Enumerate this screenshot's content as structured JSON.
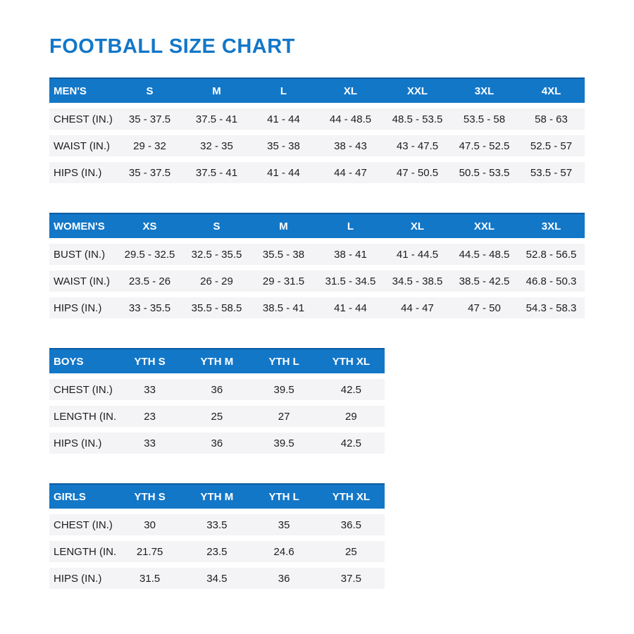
{
  "page": {
    "title": "FOOTBALL SIZE CHART"
  },
  "colors": {
    "accent_blue": "#1377c8",
    "header_border_blue": "#0d5ca1",
    "header_text": "#ffffff",
    "row_background": "#f4f4f6",
    "body_text": "#1d1d1f",
    "page_background": "#ffffff"
  },
  "tables": [
    {
      "id": "mens",
      "header_label": "MEN'S",
      "columns": [
        "S",
        "M",
        "L",
        "XL",
        "XXL",
        "3XL",
        "4XL"
      ],
      "rows": [
        {
          "label": "CHEST (IN.)",
          "values": [
            "35 - 37.5",
            "37.5 - 41",
            "41 - 44",
            "44 - 48.5",
            "48.5 - 53.5",
            "53.5 - 58",
            "58 - 63"
          ]
        },
        {
          "label": "WAIST (IN.)",
          "values": [
            "29 - 32",
            "32 - 35",
            "35 - 38",
            "38 - 43",
            "43 - 47.5",
            "47.5 - 52.5",
            "52.5 - 57"
          ]
        },
        {
          "label": "HIPS (IN.)",
          "values": [
            "35 - 37.5",
            "37.5 - 41",
            "41 - 44",
            "44 - 47",
            "47 - 50.5",
            "50.5 - 53.5",
            "53.5 - 57"
          ]
        }
      ]
    },
    {
      "id": "womens",
      "header_label": "WOMEN'S",
      "columns": [
        "XS",
        "S",
        "M",
        "L",
        "XL",
        "XXL",
        "3XL"
      ],
      "rows": [
        {
          "label": "BUST (IN.)",
          "values": [
            "29.5 - 32.5",
            "32.5 - 35.5",
            "35.5 - 38",
            "38 - 41",
            "41 - 44.5",
            "44.5 - 48.5",
            "52.8 - 56.5"
          ]
        },
        {
          "label": "WAIST (IN.)",
          "values": [
            "23.5 - 26",
            "26 - 29",
            "29 - 31.5",
            "31.5 - 34.5",
            "34.5 - 38.5",
            "38.5 - 42.5",
            "46.8 - 50.3"
          ]
        },
        {
          "label": "HIPS (IN.)",
          "values": [
            "33 - 35.5",
            "35.5 - 58.5",
            "38.5 - 41",
            "41 - 44",
            "44 - 47",
            "47 - 50",
            "54.3 - 58.3"
          ]
        }
      ]
    },
    {
      "id": "boys",
      "header_label": "BOYS",
      "columns": [
        "YTH S",
        "YTH M",
        "YTH L",
        "YTH XL"
      ],
      "rows": [
        {
          "label": "CHEST (IN.)",
          "values": [
            "33",
            "36",
            "39.5",
            "42.5"
          ]
        },
        {
          "label": "LENGTH (IN.)",
          "values": [
            "23",
            "25",
            "27",
            "29"
          ]
        },
        {
          "label": "HIPS (IN.)",
          "values": [
            "33",
            "36",
            "39.5",
            "42.5"
          ]
        }
      ]
    },
    {
      "id": "girls",
      "header_label": "GIRLS",
      "columns": [
        "YTH S",
        "YTH M",
        "YTH L",
        "YTH XL"
      ],
      "rows": [
        {
          "label": "CHEST (IN.)",
          "values": [
            "30",
            "33.5",
            "35",
            "36.5"
          ]
        },
        {
          "label": "LENGTH (IN.)",
          "values": [
            "21.75",
            "23.5",
            "24.6",
            "25"
          ]
        },
        {
          "label": "HIPS (IN.)",
          "values": [
            "31.5",
            "34.5",
            "36",
            "37.5"
          ]
        }
      ]
    }
  ]
}
